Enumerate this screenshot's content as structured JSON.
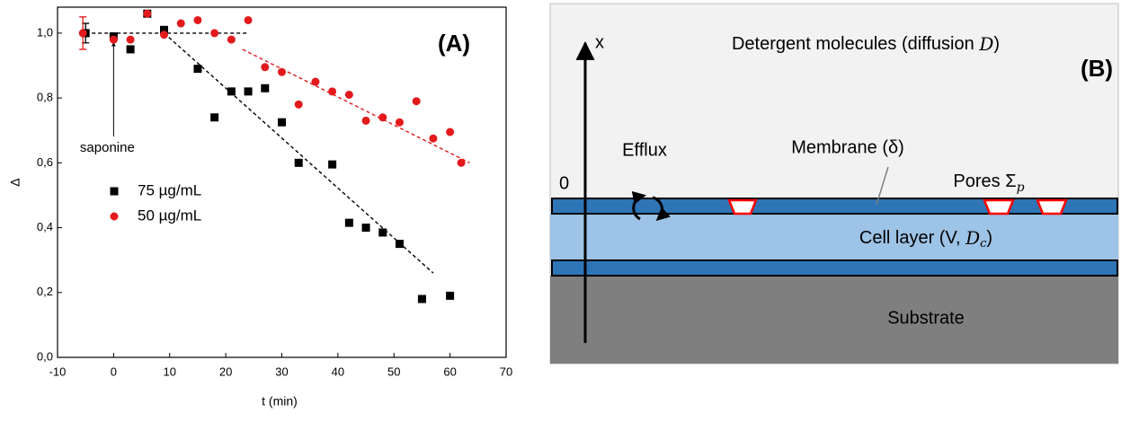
{
  "chart_data": {
    "type": "scatter",
    "panel_label": "(A)",
    "x_label": "t (min)",
    "y_label": "Δ",
    "xlim": [
      -10,
      70
    ],
    "xticks": [
      -10,
      0,
      10,
      20,
      30,
      40,
      50,
      60,
      70
    ],
    "ylim": [
      0,
      1.08
    ],
    "yticks": [
      {
        "value": 0,
        "label": "0,0"
      },
      {
        "value": 0.2,
        "label": "0,2"
      },
      {
        "value": 0.4,
        "label": "0,4"
      },
      {
        "value": 0.6,
        "label": "0,6"
      },
      {
        "value": 0.8,
        "label": "0,8"
      },
      {
        "value": 1.0,
        "label": "1,0"
      }
    ],
    "legend": "center left",
    "series": [
      {
        "name": "75 µg/mL",
        "color": "#000000",
        "marker": "square",
        "x": [
          -5,
          0,
          3,
          6,
          9,
          15,
          18,
          21,
          24,
          27,
          30,
          33,
          39,
          42,
          45,
          48,
          51,
          55,
          60
        ],
        "values": [
          1.0,
          0.99,
          0.95,
          1.06,
          1.01,
          0.89,
          0.74,
          0.82,
          0.82,
          0.83,
          0.725,
          0.6,
          0.595,
          0.415,
          0.4,
          0.385,
          0.35,
          0.18,
          0.19
        ],
        "errors": [
          0.03,
          null,
          null,
          null,
          null,
          null,
          null,
          null,
          null,
          null,
          null,
          null,
          null,
          null,
          null,
          null,
          null,
          null,
          null
        ]
      },
      {
        "name": "50 µg/mL",
        "color": "#e31a1c",
        "marker": "circle",
        "x": [
          -5,
          0,
          3,
          6,
          9,
          12,
          15,
          18,
          21,
          24,
          27,
          30,
          33,
          36,
          39,
          42,
          45,
          48,
          51,
          54,
          57,
          60,
          62
        ],
        "values": [
          1.0,
          0.98,
          0.98,
          1.06,
          0.995,
          1.03,
          1.04,
          1.0,
          0.98,
          1.04,
          0.895,
          0.88,
          0.78,
          0.85,
          0.82,
          0.81,
          0.73,
          0.74,
          0.725,
          0.79,
          0.675,
          0.695,
          0.6
        ],
        "errors": [
          0.05,
          null,
          null,
          null,
          null,
          null,
          null,
          null,
          null,
          null,
          null,
          null,
          null,
          null,
          null,
          null,
          null,
          null,
          null,
          null,
          null,
          null,
          null
        ]
      }
    ],
    "fits": [
      {
        "color": "#000000",
        "x": [
          -5,
          24
        ],
        "y": [
          1.0,
          1.0
        ]
      },
      {
        "color": "#000000",
        "x": [
          9,
          57
        ],
        "y": [
          1.0,
          0.26
        ]
      },
      {
        "color": "#e31a1c",
        "x": [
          23,
          63.5
        ],
        "y": [
          0.95,
          0.6
        ]
      }
    ],
    "annotation": {
      "text": "saponine",
      "x": 0,
      "y": 0.97
    }
  },
  "diagram": {
    "panel_label": "(B)",
    "axis_label": "x",
    "origin_label": "0",
    "top_label": [
      "Detergent molecules (diffusion ",
      "D",
      ")"
    ],
    "efflux": "Efflux",
    "membrane": "Membrane (δ)",
    "pores": [
      "Pores Σ",
      "p"
    ],
    "cell_layer": [
      "Cell layer (V, ",
      "D",
      "c",
      ")"
    ],
    "substrate": "Substrate"
  }
}
